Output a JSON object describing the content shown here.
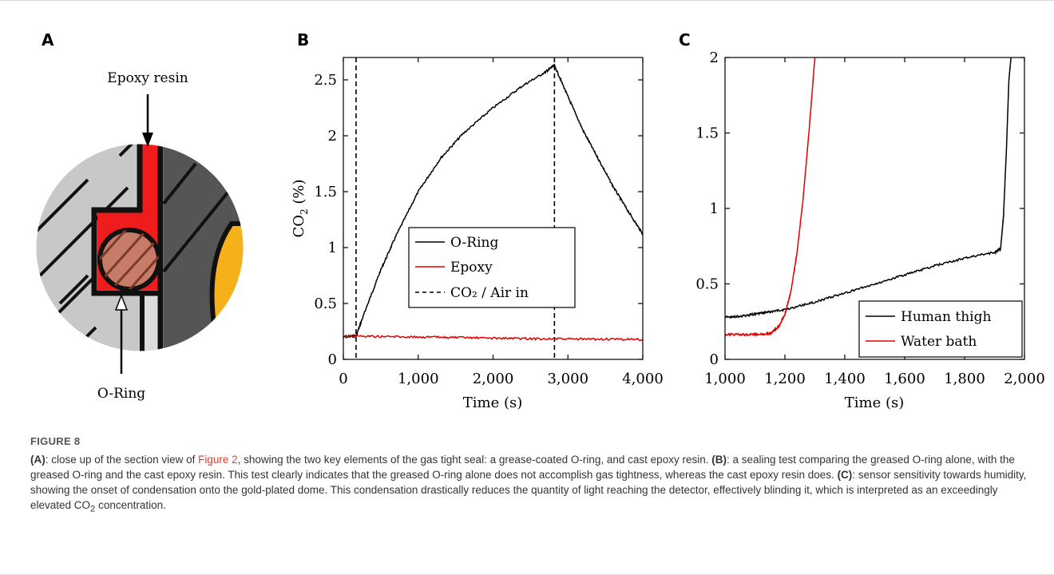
{
  "panel_a": {
    "letter": "A",
    "epoxy_label": "Epoxy resin",
    "oring_label": "O-Ring",
    "colors": {
      "epoxy": "#ee1c1c",
      "oring": "#c87b68",
      "housing_light": "#c8c8c8",
      "housing_dark": "#555555",
      "accent": "#f5b01a"
    }
  },
  "chart_data": [
    {
      "panel": "B",
      "type": "line",
      "xlabel": "Time (s)",
      "ylabel_main": "CO",
      "ylabel_sub": "2",
      "ylabel_suffix": " (%)",
      "xlim": [
        0,
        4000
      ],
      "ylim": [
        0,
        2.7
      ],
      "xticks": [
        0,
        1000,
        2000,
        3000,
        4000
      ],
      "xtick_labels": [
        "0",
        "1,000",
        "2,000",
        "3,000",
        "4,000"
      ],
      "yticks": [
        0,
        0.5,
        1,
        1.5,
        2,
        2.5
      ],
      "ytick_labels": [
        "0",
        "0.5",
        "1",
        "1.5",
        "2",
        "2.5"
      ],
      "vlines": [
        170,
        2820
      ],
      "legend_position": "center-right",
      "legend": [
        "O-Ring",
        "Epoxy",
        "CO₂ / Air in"
      ],
      "series": [
        {
          "name": "O-Ring",
          "color": "#000000",
          "x": [
            0,
            170,
            300,
            500,
            700,
            1000,
            1300,
            1600,
            2000,
            2400,
            2700,
            2820,
            3000,
            3200,
            3400,
            3600,
            3800,
            4000
          ],
          "y": [
            0.2,
            0.21,
            0.45,
            0.8,
            1.1,
            1.5,
            1.8,
            2.02,
            2.25,
            2.45,
            2.57,
            2.63,
            2.35,
            2.05,
            1.8,
            1.55,
            1.33,
            1.12
          ]
        },
        {
          "name": "Epoxy",
          "color": "#e00000",
          "x": [
            0,
            500,
            1000,
            1500,
            2000,
            2500,
            3000,
            3500,
            4000
          ],
          "y": [
            0.21,
            0.205,
            0.2,
            0.195,
            0.19,
            0.185,
            0.182,
            0.18,
            0.178
          ]
        }
      ]
    },
    {
      "panel": "C",
      "type": "line",
      "xlabel": "Time (s)",
      "xlim": [
        1000,
        2000
      ],
      "ylim": [
        0,
        2
      ],
      "xticks": [
        1000,
        1200,
        1400,
        1600,
        1800,
        2000
      ],
      "xtick_labels": [
        "1,000",
        "1,200",
        "1,400",
        "1,600",
        "1,800",
        "2,000"
      ],
      "yticks": [
        0,
        0.5,
        1,
        1.5,
        2
      ],
      "ytick_labels": [
        "0",
        "0.5",
        "1",
        "1.5",
        "2"
      ],
      "legend_position": "bottom-right",
      "legend": [
        "Human thigh",
        "Water bath"
      ],
      "series": [
        {
          "name": "Human thigh",
          "color": "#000000",
          "x": [
            1000,
            1050,
            1100,
            1150,
            1200,
            1300,
            1400,
            1500,
            1600,
            1700,
            1800,
            1900,
            1920,
            1930,
            1940,
            1948,
            1955
          ],
          "y": [
            0.28,
            0.285,
            0.3,
            0.315,
            0.33,
            0.38,
            0.44,
            0.5,
            0.56,
            0.62,
            0.67,
            0.71,
            0.73,
            0.95,
            1.4,
            1.85,
            2.0
          ]
        },
        {
          "name": "Water bath",
          "color": "#e00000",
          "x": [
            1000,
            1050,
            1100,
            1150,
            1180,
            1200,
            1220,
            1240,
            1260,
            1280,
            1300
          ],
          "y": [
            0.165,
            0.165,
            0.165,
            0.17,
            0.22,
            0.3,
            0.45,
            0.7,
            1.05,
            1.5,
            2.0
          ]
        }
      ]
    }
  ],
  "caption": {
    "figure_label": "FIGURE 8",
    "a_label": "(A)",
    "a_text_1": ": close up of the section view of ",
    "a_ref": "Figure 2",
    "a_text_2": ", showing the two key elements of the gas tight seal: a grease-coated O-ring, and cast epoxy resin. ",
    "b_label": "(B)",
    "b_text": ": a sealing test comparing the greased O-ring alone, with the greased O-ring and the cast epoxy resin. This test clearly indicates that the greased O-ring alone does not accomplish gas tightness, whereas the cast epoxy resin does. ",
    "c_label": "(C)",
    "c_text_1": ": sensor sensitivity towards humidity, showing the onset of condensation onto the gold-plated dome. This condensation drastically reduces the quantity of light reaching the detector, effectively blinding it, which is interpreted as an exceedingly elevated CO",
    "c_sub": "2",
    "c_text_2": " concentration."
  }
}
